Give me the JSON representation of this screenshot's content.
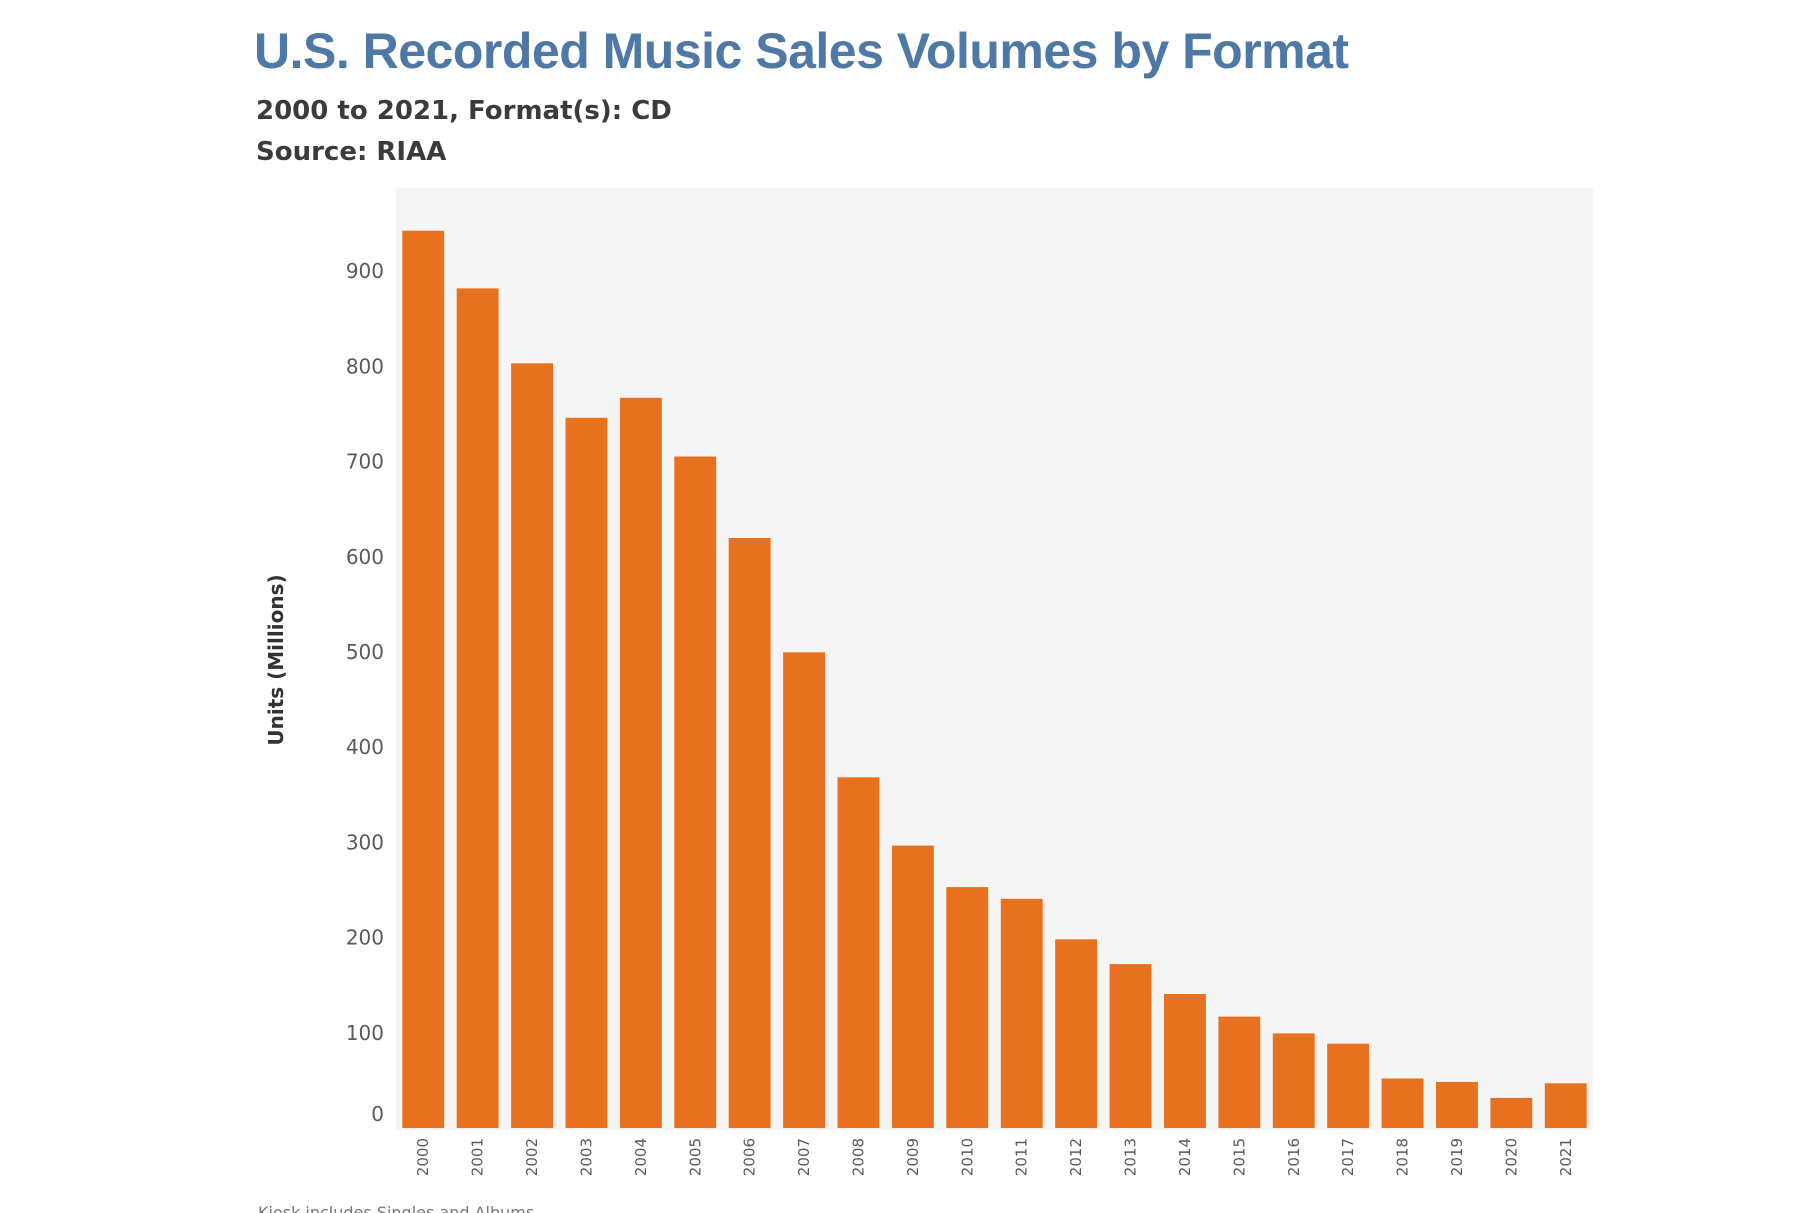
{
  "chart_data": {
    "type": "bar",
    "title": "U.S. Recorded Music Sales Volumes by Format",
    "subtitle_lines": [
      "2000 to 2021, Format(s): CD",
      "Source: RIAA"
    ],
    "xlabel": "",
    "ylabel": "Units (Millions)",
    "ylim": [
      0,
      955
    ],
    "yticks": [
      0,
      100,
      200,
      300,
      400,
      500,
      600,
      700,
      800,
      900
    ],
    "categories": [
      "2000",
      "2001",
      "2002",
      "2003",
      "2004",
      "2005",
      "2006",
      "2007",
      "2008",
      "2009",
      "2010",
      "2011",
      "2012",
      "2013",
      "2014",
      "2015",
      "2016",
      "2017",
      "2018",
      "2019",
      "2020",
      "2021"
    ],
    "series": [
      {
        "name": "CD",
        "values": [
          942.5,
          881.9,
          803.3,
          746.0,
          767.0,
          705.4,
          619.7,
          499.7,
          368.4,
          296.6,
          253.0,
          240.8,
          198.2,
          172.2,
          140.8,
          117.0,
          99.4,
          88.6,
          52.0,
          48.4,
          31.6,
          47.0
        ]
      }
    ],
    "colors": {
      "bar": "#e8711f",
      "plot_background": "#f5f5f5",
      "tick_label": "#5a5a5a",
      "axis_title": "#333333"
    },
    "grid": false,
    "legend": "none",
    "footnote": "Kiosk includes Singles and Albums"
  }
}
